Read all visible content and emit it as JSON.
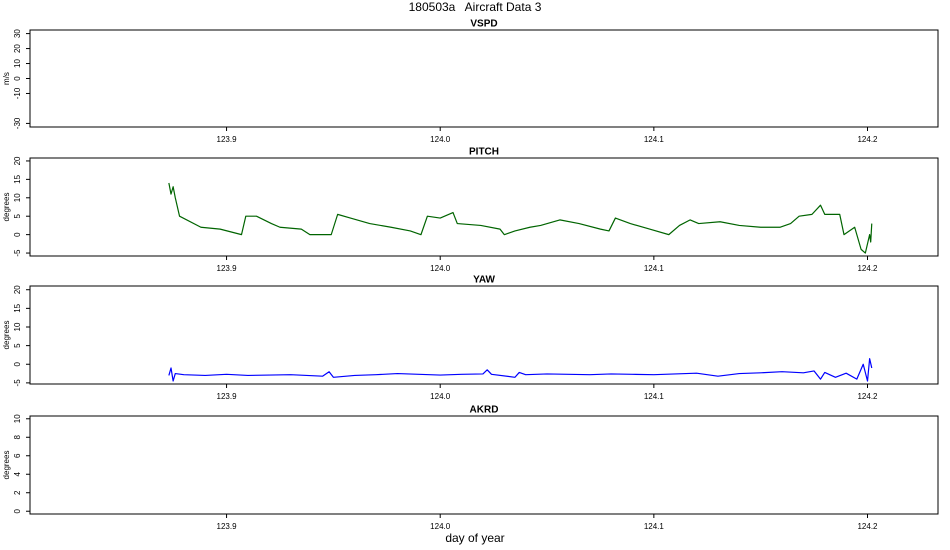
{
  "title": "180503a   Aircraft Data 3",
  "xlabel": "day of year",
  "chart_data": [
    {
      "type": "line",
      "title": "VSPD",
      "ylabel": "m/s",
      "xlim": [
        123.808,
        124.233
      ],
      "xticks": [
        123.9,
        {
          "value": 124,
          "label": "124.0"
        },
        124.1,
        124.2
      ],
      "ylim": [
        -32.4,
        32.4
      ],
      "yticks": [
        30,
        20,
        10,
        0,
        -10,
        -30
      ],
      "series": []
    },
    {
      "type": "line",
      "title": "PITCH",
      "ylabel": "degrees",
      "xlim": [
        123.808,
        124.233
      ],
      "xticks": [
        123.9,
        {
          "value": 124,
          "label": "124.0"
        },
        124.1,
        124.2
      ],
      "ylim": [
        -5.8,
        20.8
      ],
      "yticks": [
        20,
        15,
        10,
        5,
        0,
        -5
      ],
      "series": [
        {
          "color": "#006400",
          "x": [
            123.873,
            123.874,
            123.875,
            123.876,
            123.878,
            123.888,
            123.897,
            123.907,
            123.909,
            123.914,
            123.921,
            123.925,
            123.935,
            123.939,
            123.949,
            123.952,
            123.958,
            123.967,
            123.977,
            123.986,
            123.991,
            123.994,
            124.0,
            124.006,
            124.008,
            124.019,
            124.028,
            124.03,
            124.035,
            124.042,
            124.047,
            124.056,
            124.065,
            124.075,
            124.079,
            124.082,
            124.089,
            124.098,
            124.107,
            124.112,
            124.117,
            124.121,
            124.131,
            124.14,
            124.15,
            124.159,
            124.164,
            124.168,
            124.174,
            124.178,
            124.18,
            124.187,
            124.189,
            124.194,
            124.197,
            124.199,
            124.201,
            124.2015,
            124.202
          ],
          "values": [
            14,
            11,
            13,
            10,
            5,
            2,
            1.5,
            0,
            5,
            5,
            3,
            2,
            1.5,
            0,
            0,
            5.5,
            4.5,
            3,
            2,
            1,
            0,
            5,
            4.5,
            6,
            3,
            2.5,
            1.5,
            0,
            1,
            2,
            2.5,
            4,
            3,
            1.5,
            1,
            4.5,
            3,
            1.5,
            0,
            2.5,
            4,
            3,
            3.5,
            2.5,
            2,
            2,
            3,
            5,
            5.5,
            8,
            5.5,
            5.5,
            0,
            2,
            -4,
            -5,
            0,
            -2,
            3
          ]
        }
      ]
    },
    {
      "type": "line",
      "title": "YAW",
      "ylabel": "degrees",
      "xlim": [
        123.808,
        124.233
      ],
      "xticks": [
        123.9,
        {
          "value": 124,
          "label": "124.0"
        },
        124.1,
        124.2
      ],
      "ylim": [
        -5.3,
        21
      ],
      "yticks": [
        20,
        15,
        10,
        5,
        0,
        -5
      ],
      "series": [
        {
          "color": "#0000ff",
          "x": [
            123.873,
            123.874,
            123.875,
            123.876,
            123.88,
            123.89,
            123.9,
            123.91,
            123.92,
            123.93,
            123.945,
            123.948,
            123.95,
            123.96,
            123.97,
            123.98,
            123.99,
            124.0,
            124.01,
            124.02,
            124.022,
            124.024,
            124.035,
            124.037,
            124.04,
            124.05,
            124.06,
            124.07,
            124.08,
            124.09,
            124.1,
            124.11,
            124.12,
            124.13,
            124.14,
            124.15,
            124.16,
            124.17,
            124.175,
            124.178,
            124.18,
            124.185,
            124.19,
            124.195,
            124.198,
            124.2,
            124.201,
            124.202
          ],
          "values": [
            -3,
            -1,
            -4.5,
            -2.5,
            -2.8,
            -3,
            -2.7,
            -3,
            -2.9,
            -2.8,
            -3.2,
            -2,
            -3.5,
            -3,
            -2.8,
            -2.5,
            -2.7,
            -2.9,
            -2.7,
            -2.6,
            -1.5,
            -2.7,
            -3.5,
            -2.2,
            -2.8,
            -2.6,
            -2.7,
            -2.8,
            -2.6,
            -2.7,
            -2.8,
            -2.6,
            -2.4,
            -3.2,
            -2.5,
            -2.3,
            -2,
            -2.3,
            -1.8,
            -4,
            -2.2,
            -3.5,
            -2.4,
            -4,
            0,
            -4.5,
            1.5,
            -1
          ]
        }
      ]
    },
    {
      "type": "line",
      "title": "AKRD",
      "ylabel": "degrees",
      "xlim": [
        123.808,
        124.233
      ],
      "xticks": [
        123.9,
        {
          "value": 124,
          "label": "124.0"
        },
        124.1,
        124.2
      ],
      "ylim": [
        -0.3,
        10.3
      ],
      "yticks": [
        10,
        8,
        6,
        4,
        2,
        0
      ],
      "series": []
    }
  ]
}
